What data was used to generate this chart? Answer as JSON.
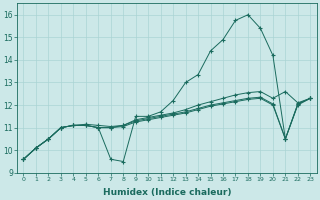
{
  "xlabel": "Humidex (Indice chaleur)",
  "bg_color": "#cce8e8",
  "grid_color": "#aad4d4",
  "line_color": "#1a6b5e",
  "xlim": [
    -0.5,
    23.5
  ],
  "ylim": [
    9,
    16.5
  ],
  "yticks": [
    9,
    10,
    11,
    12,
    13,
    14,
    15,
    16
  ],
  "xticks": [
    0,
    1,
    2,
    3,
    4,
    5,
    6,
    7,
    8,
    9,
    10,
    11,
    12,
    13,
    14,
    15,
    16,
    17,
    18,
    19,
    20,
    21,
    22,
    23
  ],
  "s1": [
    9.6,
    10.1,
    10.5,
    11.0,
    11.1,
    11.1,
    11.0,
    9.6,
    9.5,
    11.5,
    11.5,
    11.7,
    12.2,
    13.0,
    13.35,
    14.4,
    14.9,
    15.75,
    16.0,
    15.4,
    14.2,
    10.5,
    12.05,
    12.3
  ],
  "s2": [
    9.6,
    10.1,
    10.5,
    11.0,
    11.1,
    11.15,
    11.1,
    11.05,
    11.1,
    11.35,
    11.45,
    11.55,
    11.65,
    11.8,
    12.0,
    12.15,
    12.3,
    12.45,
    12.55,
    12.6,
    12.3,
    12.6,
    12.1,
    12.3
  ],
  "s3": [
    9.6,
    10.1,
    10.5,
    11.0,
    11.1,
    11.1,
    11.0,
    11.0,
    11.1,
    11.3,
    11.4,
    11.5,
    11.6,
    11.7,
    11.85,
    12.0,
    12.1,
    12.2,
    12.3,
    12.35,
    12.05,
    10.5,
    12.05,
    12.3
  ],
  "s4": [
    9.6,
    10.1,
    10.5,
    11.0,
    11.1,
    11.1,
    11.0,
    11.0,
    11.05,
    11.25,
    11.35,
    11.45,
    11.55,
    11.65,
    11.8,
    11.95,
    12.05,
    12.15,
    12.25,
    12.3,
    12.0,
    10.5,
    12.0,
    12.3
  ]
}
